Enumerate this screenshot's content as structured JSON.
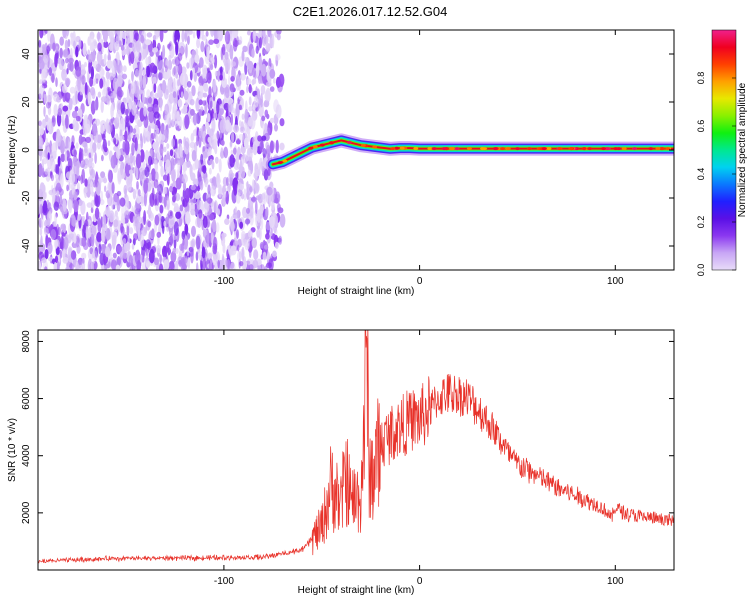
{
  "title": "C2E1.2026.017.12.52.G04",
  "chart_data": [
    {
      "type": "heatmap",
      "name": "spectrogram",
      "xlabel": "Height of straight line (km)",
      "ylabel": "Frequency (Hz)",
      "xlim": [
        -195,
        130
      ],
      "ylim": [
        -50,
        50
      ],
      "xticks": [
        -100,
        0,
        100
      ],
      "xtick_labels": [
        "-100",
        "0",
        "100"
      ],
      "yticks": [
        -40,
        -20,
        0,
        20,
        40
      ],
      "ytick_labels": [
        "-40",
        "-20",
        "0",
        "20",
        "40"
      ],
      "noise_region_km": [
        -195,
        -70
      ],
      "signal_trace": {
        "x": [
          -75,
          -70,
          -65,
          -60,
          -55,
          -50,
          -45,
          -40,
          -35,
          -30,
          -25,
          -20,
          -15,
          -10,
          -5,
          0,
          10,
          20,
          40,
          60,
          80,
          95,
          100,
          130
        ],
        "y": [
          -6,
          -5,
          -3,
          -1,
          1,
          2,
          3,
          4,
          3,
          2,
          1.5,
          1,
          0.5,
          0.8,
          0.8,
          0.6,
          0.6,
          0.6,
          0.6,
          0.6,
          0.6,
          0.6,
          0.6,
          0.6
        ]
      },
      "colorbar": {
        "label": "Normalized spectral amplitude",
        "range": [
          0,
          1
        ],
        "ticks": [
          0.0,
          0.2,
          0.4,
          0.6,
          0.8
        ],
        "tick_labels": [
          "0.0",
          "0.2",
          "0.4",
          "0.6",
          "0.8"
        ],
        "colors": [
          "#e8dcf8",
          "#c8a6f5",
          "#8b38f0",
          "#5a10e6",
          "#2020ff",
          "#0a78ff",
          "#00d2f0",
          "#00e890",
          "#10f010",
          "#8af000",
          "#e8e800",
          "#ffa000",
          "#ff4000",
          "#f00020",
          "#f0208c"
        ]
      }
    },
    {
      "type": "line",
      "name": "snr",
      "xlabel": "Height of straight line (km)",
      "ylabel": "SNR (10 * v/v)",
      "xlim": [
        -195,
        130
      ],
      "ylim": [
        0,
        8400
      ],
      "xticks": [
        -100,
        0,
        100
      ],
      "xtick_labels": [
        "-100",
        "0",
        "100"
      ],
      "yticks": [
        2000,
        4000,
        6000,
        8000
      ],
      "ytick_labels": [
        "2000",
        "4000",
        "6000",
        "8000"
      ],
      "color": "#e8322a",
      "envelope": {
        "x": [
          -195,
          -160,
          -120,
          -80,
          -60,
          -50,
          -45,
          -42,
          -40,
          -38,
          -35,
          -30,
          -28,
          -27,
          -26,
          -25,
          -22,
          -20,
          -15,
          -10,
          -5,
          0,
          5,
          10,
          15,
          20,
          25,
          30,
          35,
          40,
          45,
          50,
          60,
          70,
          80,
          90,
          95,
          98,
          100,
          105,
          110,
          120,
          130
        ],
        "y": [
          300,
          400,
          420,
          450,
          700,
          1500,
          3000,
          2600,
          2200,
          3500,
          2400,
          2600,
          5500,
          8300,
          4000,
          3200,
          3800,
          4400,
          4800,
          5000,
          5200,
          5300,
          5600,
          6000,
          6200,
          6150,
          6000,
          5600,
          5200,
          4700,
          4100,
          3700,
          3300,
          2900,
          2600,
          2300,
          2100,
          1800,
          2200,
          2000,
          1900,
          1800,
          1700
        ]
      }
    }
  ]
}
